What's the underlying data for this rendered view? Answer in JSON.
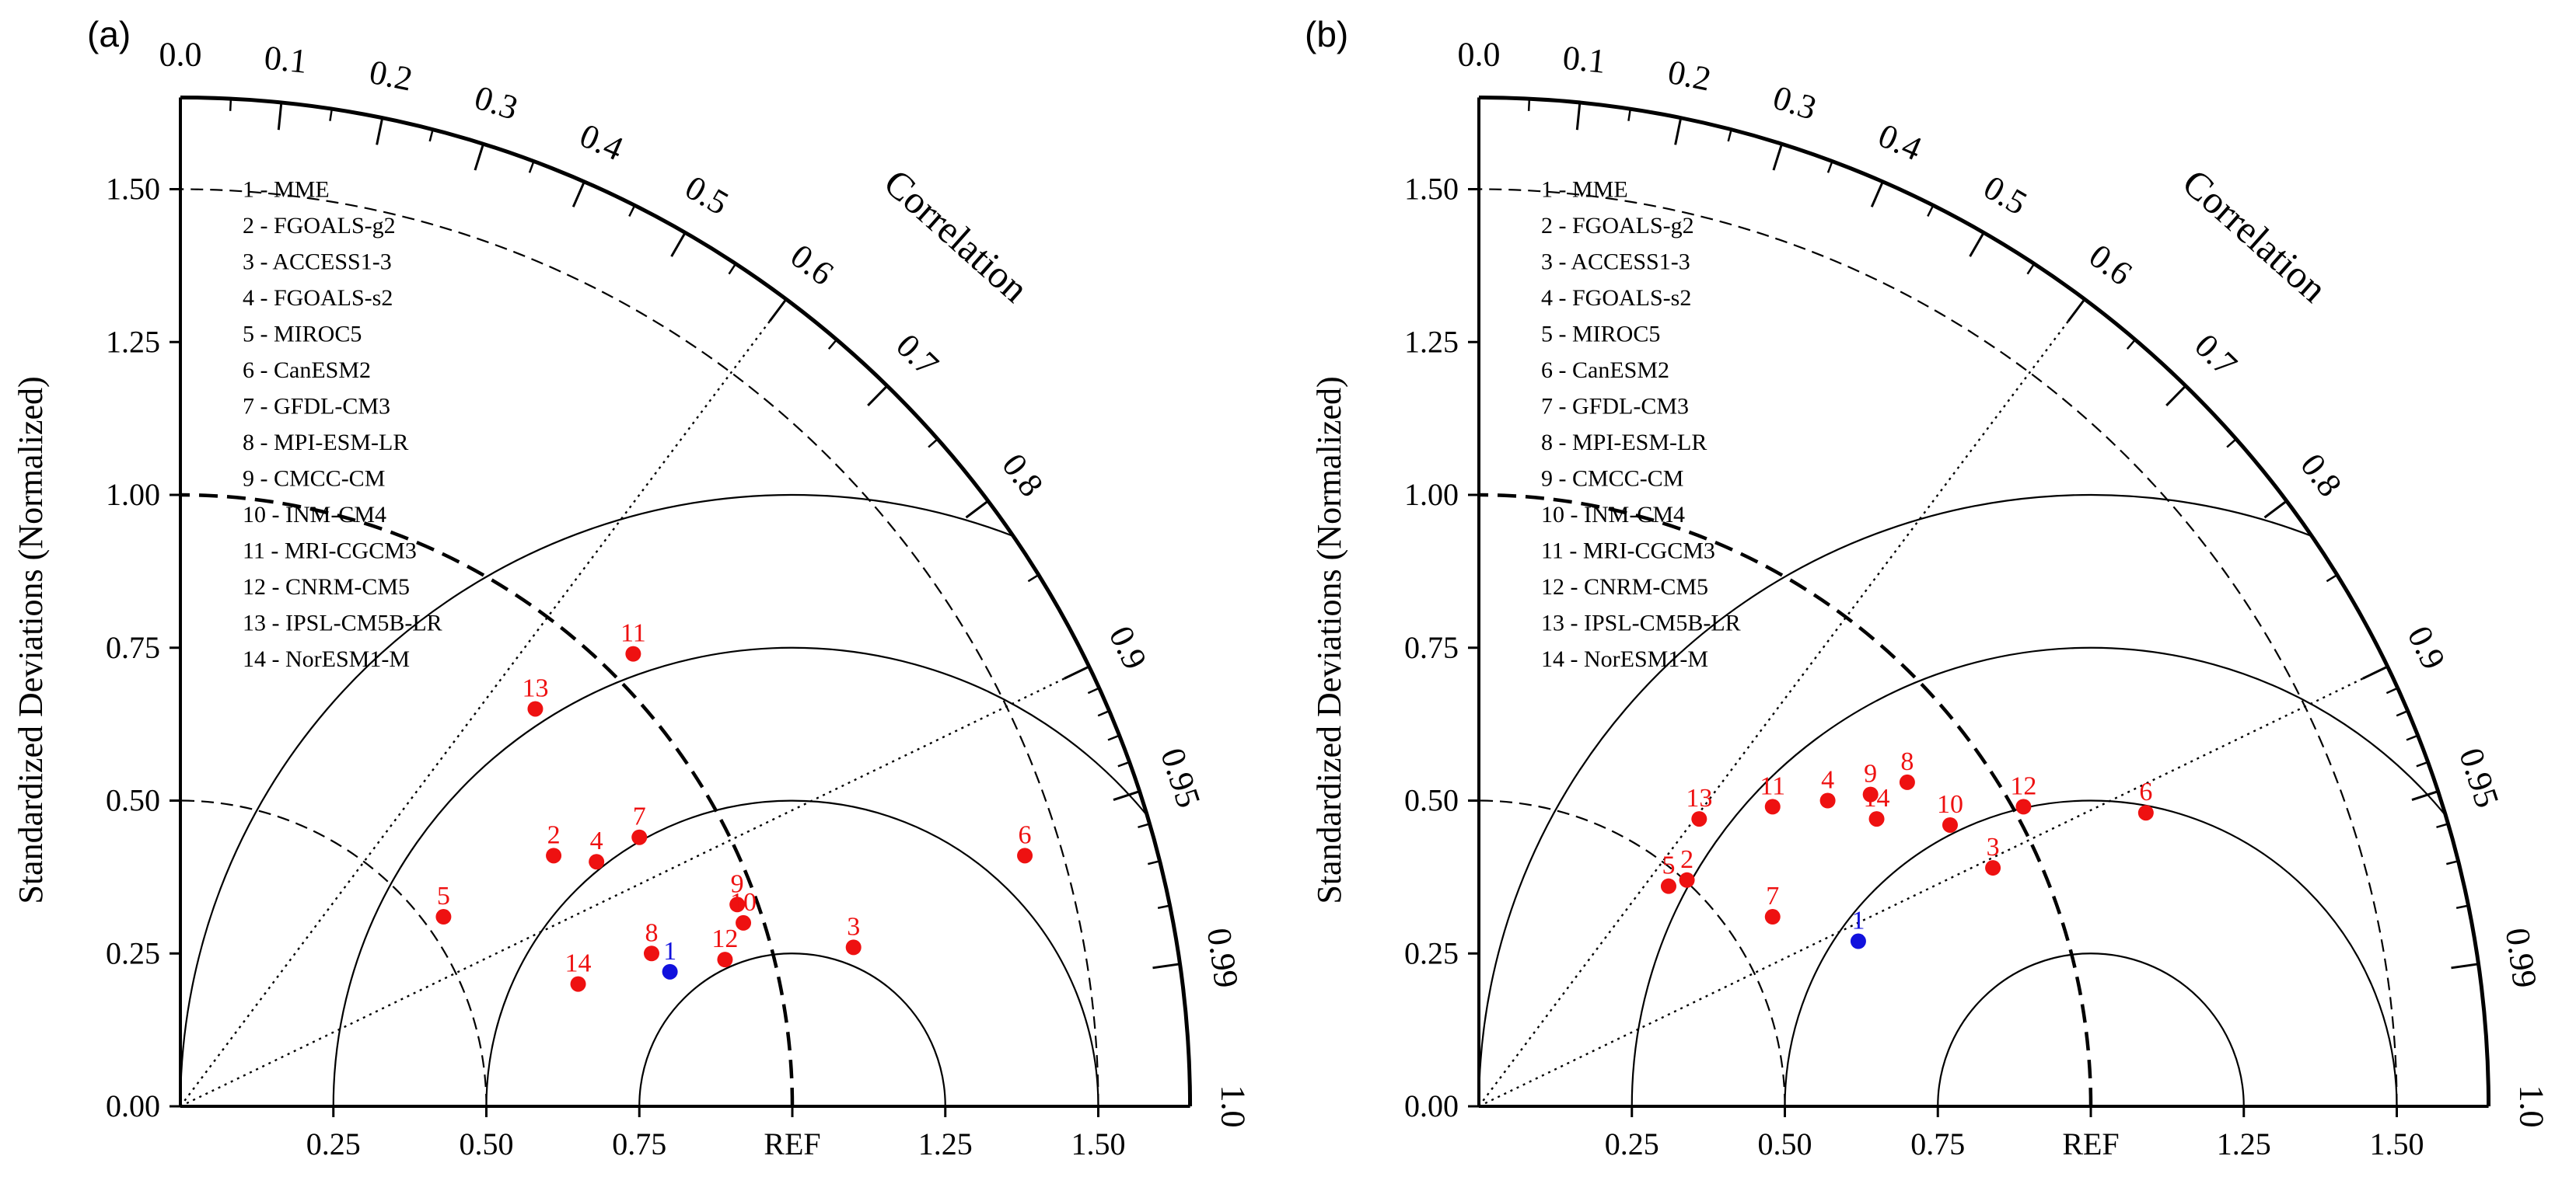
{
  "figure": {
    "colors": {
      "model": "#ee1111",
      "mme": "#1111dd",
      "axis": "#000000"
    }
  },
  "chart_data": [
    {
      "type": "taylor",
      "panel_label": "(a)",
      "ylabel": "Standardized Deviations (Normalized)",
      "corr_label": "Correlation",
      "ref_label": "REF",
      "x_ticks": [
        "0.25",
        "0.50",
        "0.75",
        "1.25",
        "1.50"
      ],
      "y_ticks": [
        "0.00",
        "0.25",
        "0.50",
        "0.75",
        "1.00",
        "1.25",
        "1.50"
      ],
      "corr_ticks": [
        "0.0",
        "0.1",
        "0.2",
        "0.3",
        "0.4",
        "0.5",
        "0.6",
        "0.7",
        "0.8",
        "0.9",
        "0.95",
        "0.99",
        "1.0"
      ],
      "std_range": [
        0,
        1.65
      ],
      "legend": [
        "1 - MME",
        "2 - FGOALS-g2",
        "3 - ACCESS1-3",
        "4 - FGOALS-s2",
        "5 - MIROC5",
        "6 - CanESM2",
        "7 - GFDL-CM3",
        "8 - MPI-ESM-LR",
        "9 - CMCC-CM",
        "10 - INM-CM4",
        "11 - MRI-CGCM3",
        "12 - CNRM-CM5",
        "13 - IPSL-CM5B-LR",
        "14 - NorESM1-M"
      ],
      "points": [
        {
          "label": "1",
          "x": 0.8,
          "y": 0.22,
          "group": "mme"
        },
        {
          "label": "2",
          "x": 0.61,
          "y": 0.41,
          "group": "model"
        },
        {
          "label": "3",
          "x": 1.1,
          "y": 0.26,
          "group": "model"
        },
        {
          "label": "4",
          "x": 0.68,
          "y": 0.4,
          "group": "model"
        },
        {
          "label": "5",
          "x": 0.43,
          "y": 0.31,
          "group": "model"
        },
        {
          "label": "6",
          "x": 1.38,
          "y": 0.41,
          "group": "model"
        },
        {
          "label": "7",
          "x": 0.75,
          "y": 0.44,
          "group": "model"
        },
        {
          "label": "8",
          "x": 0.77,
          "y": 0.25,
          "group": "model"
        },
        {
          "label": "9",
          "x": 0.91,
          "y": 0.33,
          "group": "model"
        },
        {
          "label": "10",
          "x": 0.92,
          "y": 0.3,
          "group": "model"
        },
        {
          "label": "11",
          "x": 0.74,
          "y": 0.74,
          "group": "model"
        },
        {
          "label": "12",
          "x": 0.89,
          "y": 0.24,
          "group": "model"
        },
        {
          "label": "13",
          "x": 0.58,
          "y": 0.65,
          "group": "model"
        },
        {
          "label": "14",
          "x": 0.65,
          "y": 0.2,
          "group": "model"
        }
      ]
    },
    {
      "type": "taylor",
      "panel_label": "(b)",
      "ylabel": "Standardized Deviations (Normalized)",
      "corr_label": "Correlation",
      "ref_label": "REF",
      "x_ticks": [
        "0.25",
        "0.50",
        "0.75",
        "1.25",
        "1.50"
      ],
      "y_ticks": [
        "0.00",
        "0.25",
        "0.50",
        "0.75",
        "1.00",
        "1.25",
        "1.50"
      ],
      "corr_ticks": [
        "0.0",
        "0.1",
        "0.2",
        "0.3",
        "0.4",
        "0.5",
        "0.6",
        "0.7",
        "0.8",
        "0.9",
        "0.95",
        "0.99",
        "1.0"
      ],
      "std_range": [
        0,
        1.65
      ],
      "legend": [
        "1 - MME",
        "2 - FGOALS-g2",
        "3 - ACCESS1-3",
        "4 - FGOALS-s2",
        "5 - MIROC5",
        "6 - CanESM2",
        "7 - GFDL-CM3",
        "8 - MPI-ESM-LR",
        "9 - CMCC-CM",
        "10 - INM-CM4",
        "11 - MRI-CGCM3",
        "12 - CNRM-CM5",
        "13 - IPSL-CM5B-LR",
        "14 - NorESM1-M"
      ],
      "points": [
        {
          "label": "1",
          "x": 0.62,
          "y": 0.27,
          "group": "mme"
        },
        {
          "label": "2",
          "x": 0.34,
          "y": 0.37,
          "group": "model"
        },
        {
          "label": "3",
          "x": 0.84,
          "y": 0.39,
          "group": "model"
        },
        {
          "label": "4",
          "x": 0.57,
          "y": 0.5,
          "group": "model"
        },
        {
          "label": "5",
          "x": 0.31,
          "y": 0.36,
          "group": "model"
        },
        {
          "label": "6",
          "x": 1.09,
          "y": 0.48,
          "group": "model"
        },
        {
          "label": "7",
          "x": 0.48,
          "y": 0.31,
          "group": "model"
        },
        {
          "label": "8",
          "x": 0.7,
          "y": 0.53,
          "group": "model"
        },
        {
          "label": "9",
          "x": 0.64,
          "y": 0.51,
          "group": "model"
        },
        {
          "label": "10",
          "x": 0.77,
          "y": 0.46,
          "group": "model"
        },
        {
          "label": "11",
          "x": 0.48,
          "y": 0.49,
          "group": "model"
        },
        {
          "label": "12",
          "x": 0.89,
          "y": 0.49,
          "group": "model"
        },
        {
          "label": "13",
          "x": 0.36,
          "y": 0.47,
          "group": "model"
        },
        {
          "label": "14",
          "x": 0.65,
          "y": 0.47,
          "group": "model"
        }
      ]
    }
  ]
}
